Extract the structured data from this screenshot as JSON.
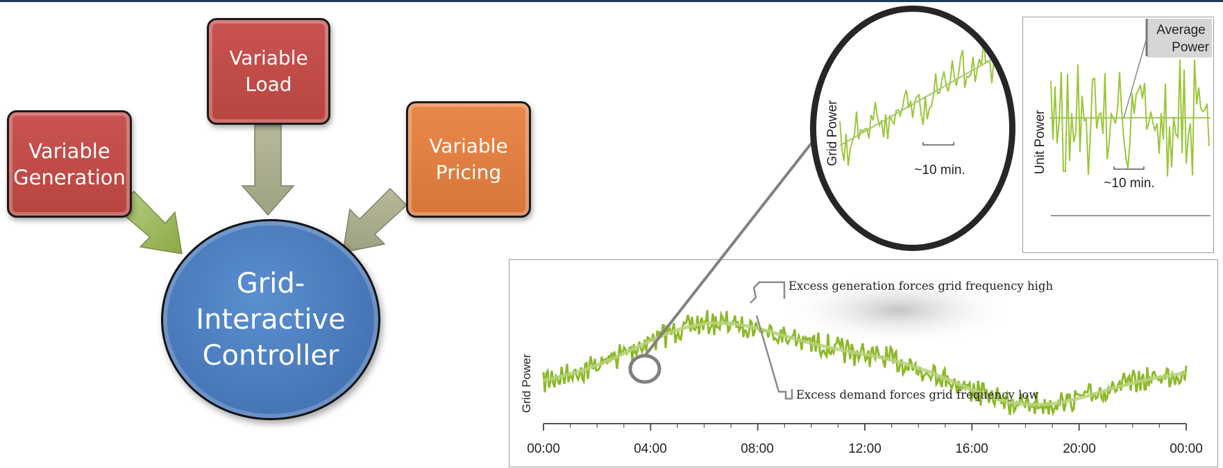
{
  "inputs": {
    "generation": "Variable\nGeneration",
    "load": "Variable\nLoad",
    "pricing": "Variable\nPricing"
  },
  "controller": "Grid-\nInteractive\nController",
  "colors": {
    "input_red": "#c0504d",
    "input_orange": "#e07b39",
    "controller_blue": "#4f81bd",
    "arrow_green": "#9bbb59",
    "signal_green": "#8db82a"
  },
  "main_chart": {
    "y_label": "Grid Power",
    "x_ticks": [
      "00:00",
      "04:00",
      "08:00",
      "12:00",
      "16:00",
      "20:00",
      "00:00"
    ],
    "annotation_high": "Excess generation forces grid frequency high",
    "annotation_low": "Excess demand forces grid frequency low"
  },
  "zoom_chart": {
    "y_label": "Grid Power",
    "interval": "~10 min."
  },
  "unit_chart": {
    "y_label": "Unit Power",
    "interval": "~10 min.",
    "average_label": "Average\nPower"
  }
}
